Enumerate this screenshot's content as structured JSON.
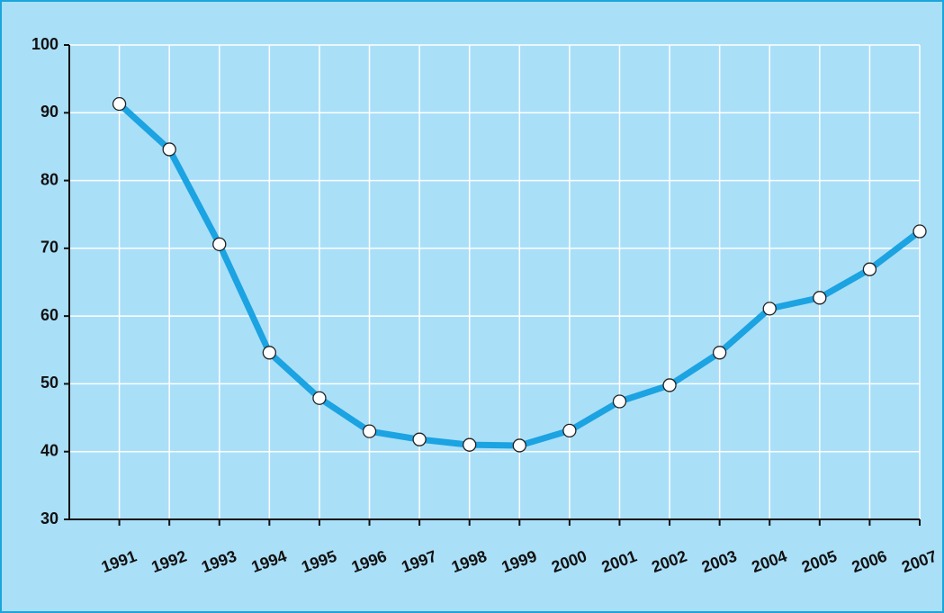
{
  "chart_data": {
    "type": "line",
    "categories": [
      "1991",
      "1992",
      "1993",
      "1994",
      "1995",
      "1996",
      "1997",
      "1998",
      "1999",
      "2000",
      "2001",
      "2002",
      "2003",
      "2004",
      "2005",
      "2006",
      "2007"
    ],
    "series": [
      {
        "color": "#1ba3e2",
        "values": [
          91.3,
          84.6,
          70.6,
          54.6,
          47.9,
          43,
          41.8,
          41,
          40.9,
          43.1,
          47.4,
          49.8,
          54.6,
          61.1,
          62.7,
          66.9,
          72.5
        ]
      }
    ],
    "ylim": [
      30,
      100
    ],
    "yticks": [
      30,
      40,
      50,
      60,
      70,
      80,
      90,
      100
    ],
    "grid": true
  }
}
